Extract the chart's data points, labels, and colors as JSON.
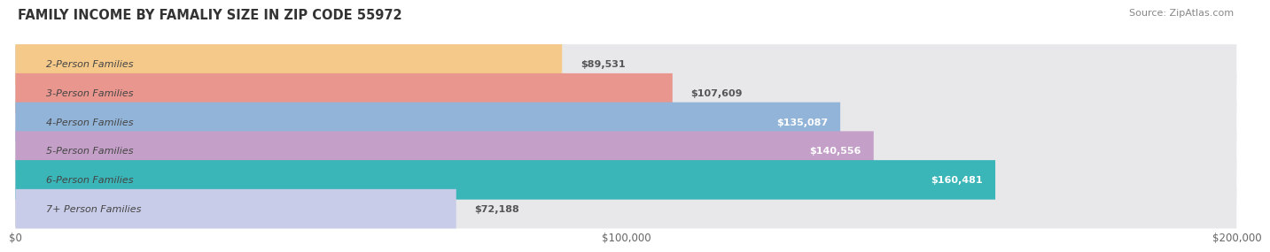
{
  "title": "FAMILY INCOME BY FAMALIY SIZE IN ZIP CODE 55972",
  "source": "Source: ZipAtlas.com",
  "categories": [
    "2-Person Families",
    "3-Person Families",
    "4-Person Families",
    "5-Person Families",
    "6-Person Families",
    "7+ Person Families"
  ],
  "values": [
    89531,
    107609,
    135087,
    140556,
    160481,
    72188
  ],
  "labels": [
    "$89,531",
    "$107,609",
    "$135,087",
    "$140,556",
    "$160,481",
    "$72,188"
  ],
  "bar_colors": [
    "#f5c98a",
    "#e8968e",
    "#92b4d8",
    "#c4a0c8",
    "#3ab5b8",
    "#c8cce8"
  ],
  "bar_bg_color": "#e8e8eb",
  "xlim": [
    0,
    200000
  ],
  "xticks": [
    0,
    100000,
    200000
  ],
  "xticklabels": [
    "$0",
    "$100,000",
    "$200,000"
  ],
  "bg_color": "#ffffff",
  "title_fontsize": 10.5,
  "source_fontsize": 8,
  "bar_height": 0.68,
  "bar_label_fontsize": 8,
  "category_fontsize": 8,
  "tick_fontsize": 8.5,
  "label_color_inside": "#ffffff",
  "label_color_outside": "#555555",
  "inside_threshold": 120000
}
